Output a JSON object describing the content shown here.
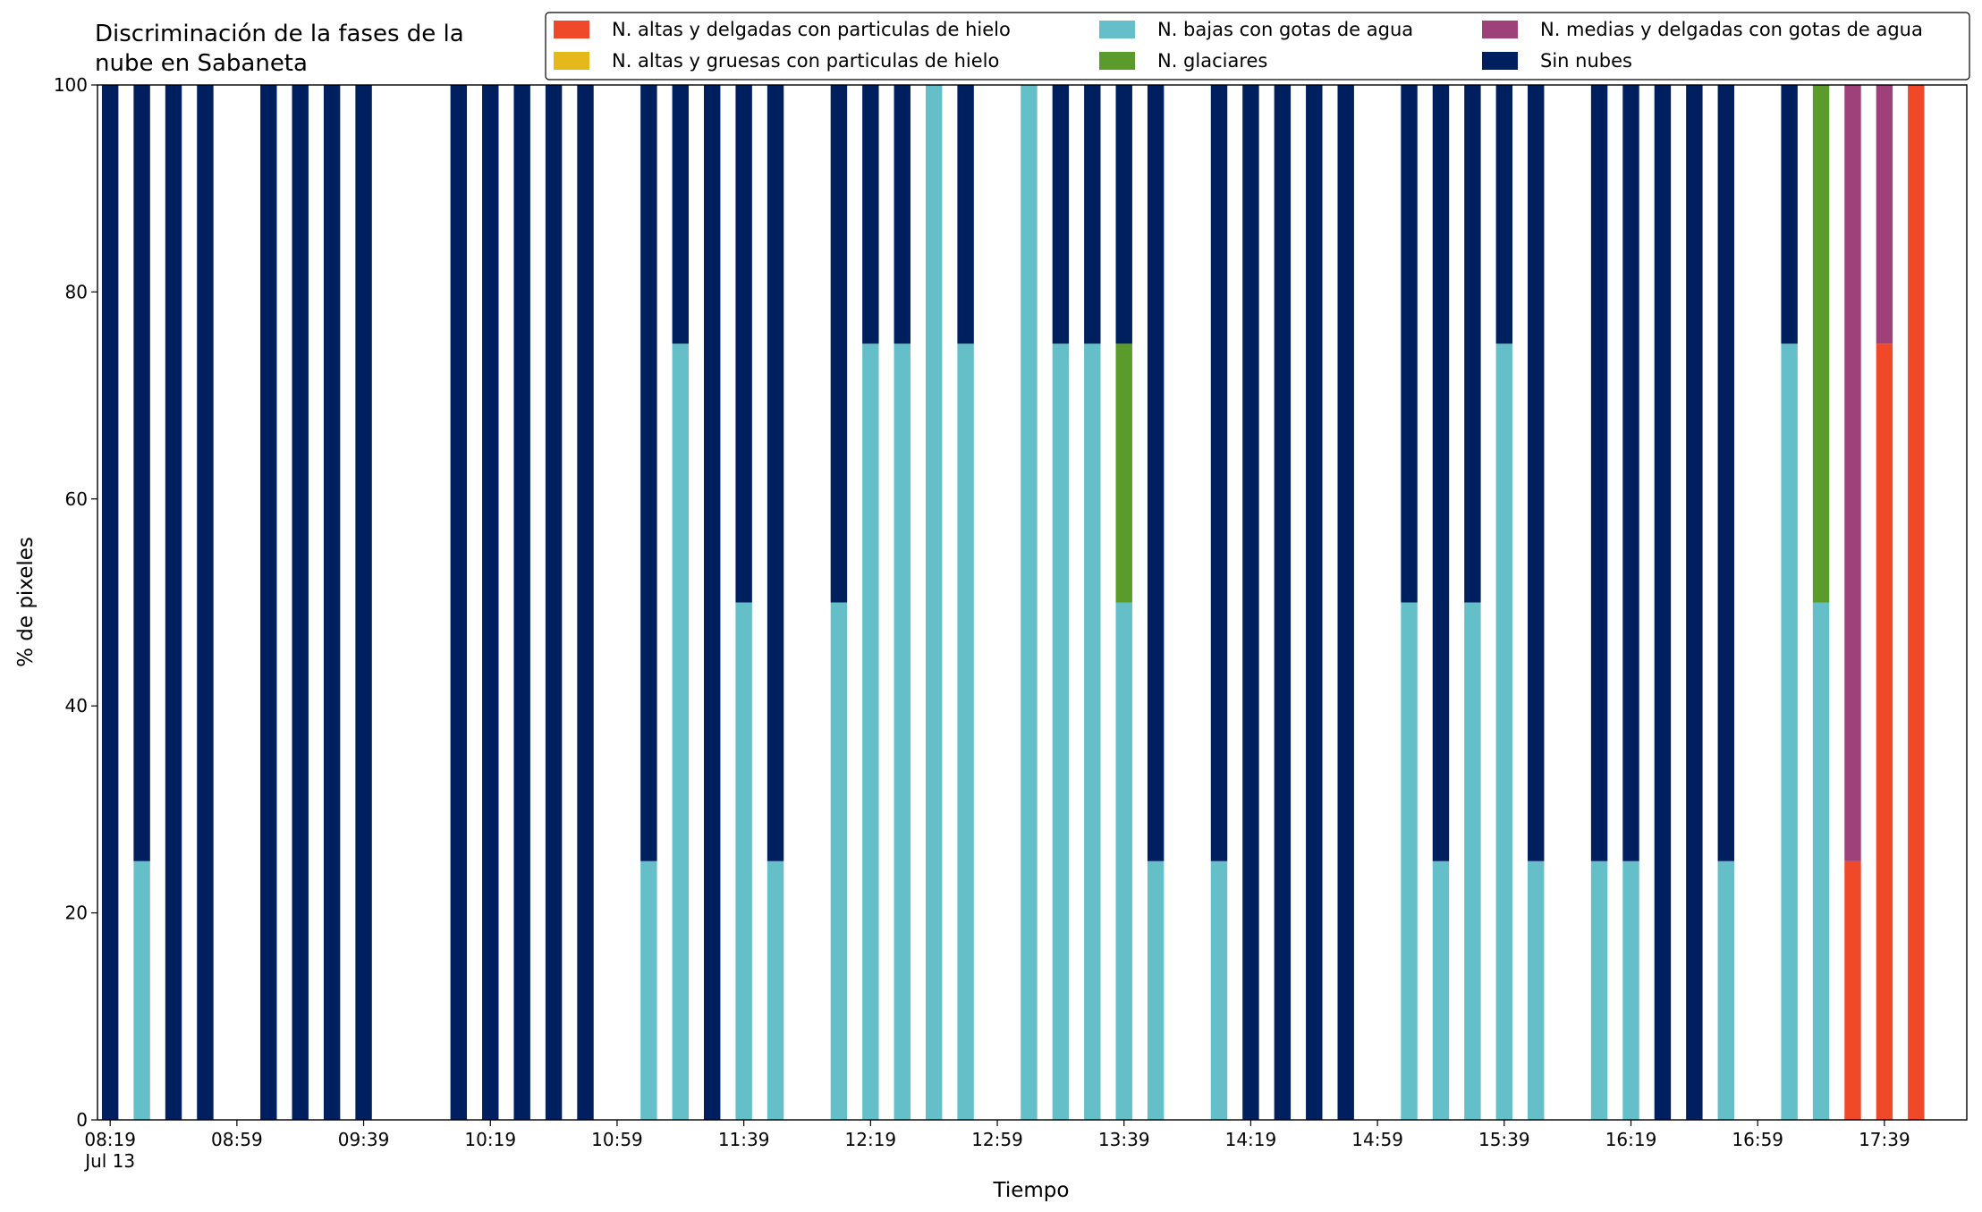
{
  "chart_data": {
    "type": "bar",
    "stacked": true,
    "title": "Discriminación de la fases de la\nnube en Sabaneta",
    "xlabel": "Tiempo",
    "ylabel": "% de pixeles",
    "x_date_label": "Jul 13",
    "x": [
      "08:19",
      "08:29",
      "08:39",
      "08:49",
      "09:09",
      "09:19",
      "09:29",
      "09:39",
      "10:09",
      "10:19",
      "10:29",
      "10:39",
      "10:49",
      "11:09",
      "11:19",
      "11:29",
      "11:39",
      "11:49",
      "12:09",
      "12:19",
      "12:29",
      "12:39",
      "12:49",
      "13:09",
      "13:19",
      "13:29",
      "13:39",
      "13:49",
      "14:09",
      "14:19",
      "14:29",
      "14:39",
      "14:49",
      "15:09",
      "15:19",
      "15:29",
      "15:39",
      "15:49",
      "16:09",
      "16:19",
      "16:29",
      "16:39",
      "16:49",
      "17:09",
      "17:19",
      "17:29",
      "17:39",
      "17:49"
    ],
    "series": [
      {
        "name": "N. altas y delgadas con particulas de hielo",
        "color": "#f0492a",
        "values": [
          0,
          0,
          0,
          0,
          0,
          0,
          0,
          0,
          0,
          0,
          0,
          0,
          0,
          0,
          0,
          0,
          0,
          0,
          0,
          0,
          0,
          0,
          0,
          0,
          0,
          0,
          0,
          0,
          0,
          0,
          0,
          0,
          0,
          0,
          0,
          0,
          0,
          0,
          0,
          0,
          0,
          0,
          0,
          0,
          0,
          25,
          75,
          100
        ]
      },
      {
        "name": "N. altas y gruesas con particulas de hielo",
        "color": "#e5b81c",
        "values": [
          0,
          0,
          0,
          0,
          0,
          0,
          0,
          0,
          0,
          0,
          0,
          0,
          0,
          0,
          0,
          0,
          0,
          0,
          0,
          0,
          0,
          0,
          0,
          0,
          0,
          0,
          0,
          0,
          0,
          0,
          0,
          0,
          0,
          0,
          0,
          0,
          0,
          0,
          0,
          0,
          0,
          0,
          0,
          0,
          0,
          0,
          0,
          0
        ]
      },
      {
        "name": "N. bajas con gotas de agua",
        "color": "#65bfc9",
        "values": [
          0,
          25,
          0,
          0,
          0,
          0,
          0,
          0,
          0,
          0,
          0,
          0,
          0,
          25,
          75,
          0,
          50,
          25,
          50,
          75,
          75,
          100,
          75,
          100,
          75,
          75,
          50,
          25,
          25,
          0,
          0,
          0,
          0,
          50,
          25,
          50,
          75,
          25,
          25,
          25,
          0,
          0,
          25,
          75,
          50,
          0,
          0,
          0
        ]
      },
      {
        "name": "N. glaciares",
        "color": "#5b9b2b",
        "values": [
          0,
          0,
          0,
          0,
          0,
          0,
          0,
          0,
          0,
          0,
          0,
          0,
          0,
          0,
          0,
          0,
          0,
          0,
          0,
          0,
          0,
          0,
          0,
          0,
          0,
          0,
          25,
          0,
          0,
          0,
          0,
          0,
          0,
          0,
          0,
          0,
          0,
          0,
          0,
          0,
          0,
          0,
          0,
          0,
          50,
          0,
          0,
          0
        ]
      },
      {
        "name": "N. medias y delgadas con gotas de agua",
        "color": "#9e407a",
        "values": [
          0,
          0,
          0,
          0,
          0,
          0,
          0,
          0,
          0,
          0,
          0,
          0,
          0,
          0,
          0,
          0,
          0,
          0,
          0,
          0,
          0,
          0,
          0,
          0,
          0,
          0,
          0,
          0,
          0,
          0,
          0,
          0,
          0,
          0,
          0,
          0,
          0,
          0,
          0,
          0,
          0,
          0,
          0,
          0,
          0,
          75,
          25,
          0
        ]
      },
      {
        "name": "Sin nubes",
        "color": "#001f5e",
        "values": [
          100,
          75,
          100,
          100,
          100,
          100,
          100,
          100,
          100,
          100,
          100,
          100,
          100,
          75,
          25,
          100,
          50,
          75,
          50,
          25,
          25,
          0,
          25,
          0,
          25,
          25,
          25,
          75,
          75,
          100,
          100,
          100,
          100,
          50,
          75,
          50,
          25,
          75,
          75,
          75,
          100,
          100,
          75,
          25,
          0,
          0,
          0,
          0
        ]
      }
    ],
    "xlim": [
      "08:15",
      "18:05"
    ],
    "xticks": [
      "08:19",
      "08:59",
      "09:39",
      "10:19",
      "10:59",
      "11:39",
      "12:19",
      "12:59",
      "13:39",
      "14:19",
      "14:59",
      "15:39",
      "16:19",
      "16:59",
      "17:39"
    ],
    "ylim": [
      0,
      100
    ],
    "yticks": [
      0,
      20,
      40,
      60,
      80,
      100
    ],
    "grid": false,
    "legend": "upper right"
  }
}
